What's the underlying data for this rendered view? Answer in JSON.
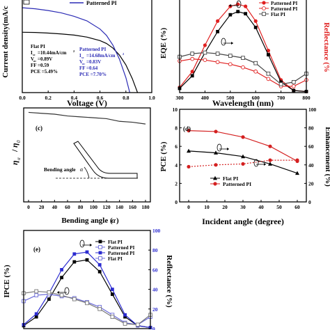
{
  "chart_data": [
    {
      "panel": "(a)",
      "type": "line",
      "legend": [
        "Patterned PI"
      ],
      "xlabel": "Voltage (V)",
      "ylabel": "Current density(mA/c",
      "xlim": [
        0,
        1.0
      ],
      "xticks": [
        "0.0",
        "0.2",
        "0.4",
        "0.6",
        "0.8",
        "1.0"
      ],
      "series": [
        {
          "name": "Flat PI",
          "color": "#000000",
          "x": [
            0,
            0.1,
            0.2,
            0.3,
            0.4,
            0.5,
            0.6,
            0.65,
            0.7,
            0.75,
            0.8,
            0.85,
            0.89
          ],
          "y": [
            10.44,
            10.4,
            10.3,
            10.15,
            9.95,
            9.6,
            9.0,
            8.5,
            7.7,
            6.5,
            4.8,
            2.4,
            0
          ]
        },
        {
          "name": "Patterned PI",
          "color": "#2b2bb5",
          "x": [
            0,
            0.1,
            0.2,
            0.3,
            0.4,
            0.5,
            0.6,
            0.65,
            0.7,
            0.75,
            0.8,
            0.83
          ],
          "y": [
            14.68,
            14.5,
            14.2,
            13.8,
            13.2,
            12.4,
            11.0,
            9.9,
            8.2,
            5.8,
            2.6,
            0
          ]
        }
      ],
      "annotations": {
        "flat": [
          "Flat PI",
          "I",
          "=10.44mA/cm",
          "V",
          "=0.89V",
          "FF =0.59",
          "PCE =5.49%"
        ],
        "patterned": [
          "Patterned PI",
          "I",
          "=14.68mA/cm",
          "V",
          "=0.83V",
          "FF =0.64",
          "PCE =7.70%"
        ],
        "sub_sc": "sc",
        "sub_oc": "oc",
        "sup2": "2"
      }
    },
    {
      "panel": "(b)",
      "type": "line",
      "legend": [
        "Patterned PI",
        "Patterned PI",
        "Flat PI"
      ],
      "xlabel": "Wavelength (nm)",
      "ylabel_left": "EQE (%)",
      "ylabel_right": "Reflectance (%",
      "xlim": [
        300,
        800
      ],
      "xticks": [
        "300",
        "400",
        "500",
        "600",
        "700",
        "800"
      ],
      "series": [
        {
          "name": "EQE Patterned PI",
          "color": "#e02020",
          "marker": "circle",
          "x": [
            300,
            350,
            400,
            450,
            500,
            530,
            560,
            600,
            650,
            700,
            750,
            800
          ],
          "y": [
            5,
            20,
            45,
            68,
            82,
            84,
            82,
            68,
            40,
            12,
            2,
            1
          ]
        },
        {
          "name": "EQE Flat PI",
          "color": "#000000",
          "marker": "square",
          "x": [
            300,
            350,
            400,
            450,
            500,
            530,
            560,
            600,
            650,
            700,
            750,
            800
          ],
          "y": [
            4,
            16,
            38,
            58,
            74,
            77,
            75,
            62,
            36,
            10,
            2,
            1
          ]
        },
        {
          "name": "Reflectance Patterned PI",
          "color": "#e02020",
          "marker": "circle-open",
          "x": [
            300,
            350,
            400,
            450,
            500,
            550,
            600,
            650,
            700,
            750,
            800
          ],
          "y": [
            30,
            32,
            31,
            29,
            27,
            24,
            20,
            13,
            6,
            6,
            12
          ]
        },
        {
          "name": "Reflectance Flat PI",
          "color": "#444444",
          "marker": "square-open",
          "x": [
            300,
            350,
            400,
            450,
            500,
            550,
            600,
            650,
            700,
            750,
            800
          ],
          "y": [
            34,
            37,
            38,
            37,
            35,
            33,
            28,
            18,
            8,
            10,
            18
          ]
        }
      ]
    },
    {
      "panel": "(c)",
      "type": "line",
      "xlabel": "Bending angle (",
      "xlabel_symbol": "α",
      "ylabel": "η",
      "xlim": [
        0,
        180
      ],
      "xticks": [
        "0",
        "20",
        "40",
        "60",
        "80",
        "100",
        "120",
        "140",
        "160",
        "180"
      ],
      "inset_label": "Bending angle",
      "inset_symbol": "α",
      "series": [
        {
          "name": "normalized efficiency",
          "color": "#333333",
          "x": [
            0,
            20,
            40,
            60,
            80,
            100,
            120,
            140,
            160,
            180
          ],
          "y": [
            100,
            99,
            98,
            96,
            95,
            94,
            93,
            90,
            89,
            87
          ]
        }
      ]
    },
    {
      "panel": "(d)",
      "type": "line",
      "xlabel": "Incident angle (degree)",
      "ylabel_left": "PCE (%)",
      "ylabel_right": "Enhancement (%)",
      "xlim": [
        0,
        60
      ],
      "xticks": [
        "0",
        "10",
        "20",
        "30",
        "40",
        "50",
        "60"
      ],
      "yticks_left": [
        "0",
        "2",
        "4",
        "6",
        "8",
        "10"
      ],
      "yticks_right": [
        "0",
        "20",
        "40",
        "60",
        "80",
        "100"
      ],
      "legend": [
        "Flat PI",
        "Patterned PI"
      ],
      "series": [
        {
          "name": "Flat PI",
          "color": "#000000",
          "marker": "triangle",
          "x": [
            0,
            15,
            30,
            45,
            60
          ],
          "y": [
            5.5,
            5.3,
            4.9,
            4.1,
            3.1
          ]
        },
        {
          "name": "Patterned PI",
          "color": "#d42020",
          "marker": "circle",
          "x": [
            0,
            15,
            30,
            45,
            60
          ],
          "y": [
            7.7,
            7.6,
            7.0,
            6.0,
            4.4
          ]
        },
        {
          "name": "Enhancement",
          "color": "#d42020",
          "marker": "circle",
          "dashed": true,
          "axis": "right",
          "x": [
            0,
            15,
            30,
            45,
            60
          ],
          "y": [
            38,
            40,
            41,
            45,
            45
          ]
        }
      ]
    },
    {
      "panel": "(e)",
      "type": "line",
      "ylabel_left": "IPCE (%)",
      "ylabel_right": "Reflectance (%)",
      "yticks_right": [
        "0",
        "20",
        "40",
        "60",
        "80",
        "100"
      ],
      "legend": [
        "Flat PI",
        "Patterned PI",
        "Patterned PI",
        "Flat PI"
      ],
      "series": [
        {
          "name": "IPCE Flat PI",
          "color": "#000000",
          "marker": "square",
          "x": [
            300,
            350,
            400,
            450,
            500,
            550,
            600,
            650,
            700,
            750,
            800
          ],
          "y": [
            3,
            12,
            30,
            52,
            68,
            70,
            58,
            35,
            12,
            3,
            1
          ]
        },
        {
          "name": "IPCE Patterned PI",
          "color": "#2b2bd0",
          "marker": "square",
          "x": [
            300,
            350,
            400,
            450,
            500,
            550,
            600,
            650,
            700,
            750,
            800
          ],
          "y": [
            4,
            15,
            36,
            60,
            76,
            78,
            65,
            40,
            14,
            3,
            1
          ]
        },
        {
          "name": "Reflectance Patterned PI",
          "color": "#6a6ad8",
          "marker": "square-open",
          "x": [
            300,
            350,
            400,
            450,
            500,
            550,
            600,
            650,
            700,
            750,
            800
          ],
          "y": [
            28,
            34,
            35,
            33,
            31,
            27,
            22,
            14,
            6,
            4,
            12
          ]
        },
        {
          "name": "Reflectance Flat PI",
          "color": "#777777",
          "marker": "square-open",
          "x": [
            300,
            350,
            400,
            450,
            500,
            550,
            600,
            650,
            700,
            750,
            800
          ],
          "y": [
            36,
            38,
            37,
            34,
            30,
            26,
            20,
            12,
            5,
            4,
            14
          ]
        }
      ]
    }
  ]
}
